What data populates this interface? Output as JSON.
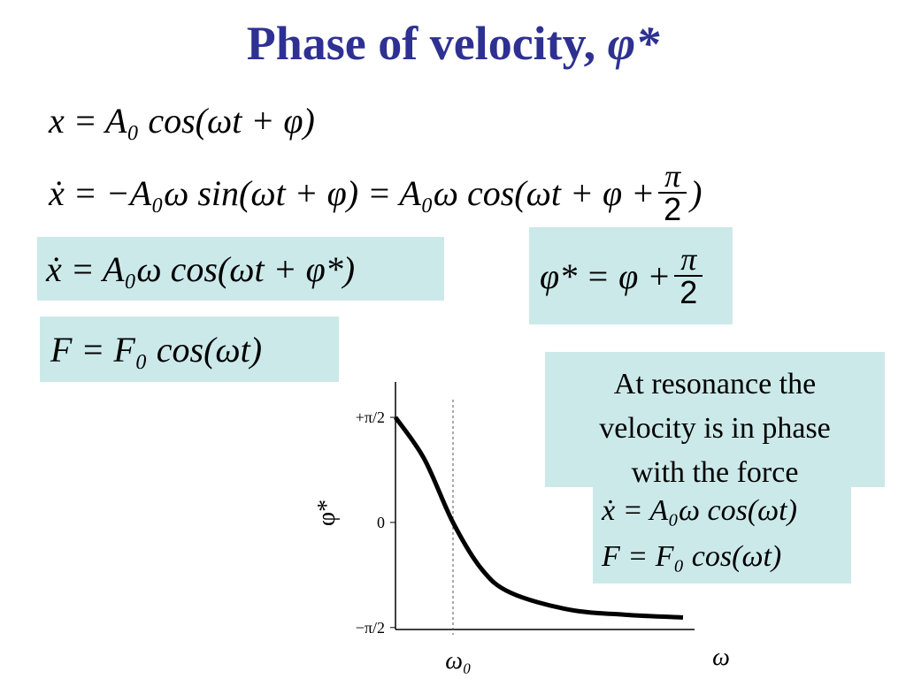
{
  "title": {
    "text": "Phase of velocity,",
    "symbol": "φ*"
  },
  "equations": [
    {
      "text": "x = A₀ cos(ωt + φ)"
    },
    {
      "text": "ẋ = −A₀ω sin(ωt + φ) = A₀ω cos(ωt + φ +",
      "fraction": {
        "num": "π",
        "den": "2"
      },
      "tail": ")"
    },
    {
      "text": "ẋ = A₀ω cos(ωt + φ*)"
    },
    {
      "text": "φ* = φ +",
      "fraction": {
        "num": "π",
        "den": "2"
      }
    },
    {
      "text": "F = F₀ cos(ωt)"
    }
  ],
  "callout": {
    "text": "At resonance the velocity is in phase with the force",
    "equations": [
      "ẋ = A₀ω cos(ωt)",
      "F = F₀ cos(ωt)"
    ]
  },
  "chart_data": {
    "type": "line",
    "ylabel": "φ*",
    "xlabel": "ω",
    "x": [
      0,
      0.5,
      1,
      1.5,
      2,
      3,
      4,
      5
    ],
    "values": [
      1.57,
      0.95,
      0,
      -0.7,
      -1.05,
      -1.3,
      -1.38,
      -1.42
    ],
    "color": "#000000",
    "xlim": [
      0,
      5.2
    ],
    "ylim": [
      -1.6,
      2.1
    ],
    "xticks": [
      {
        "value": 1,
        "label": "ω₀"
      }
    ],
    "yticks": [
      {
        "value": 1.5708,
        "label": "+π/2"
      },
      0,
      {
        "value": -1.5708,
        "label": "−π/2"
      }
    ]
  }
}
